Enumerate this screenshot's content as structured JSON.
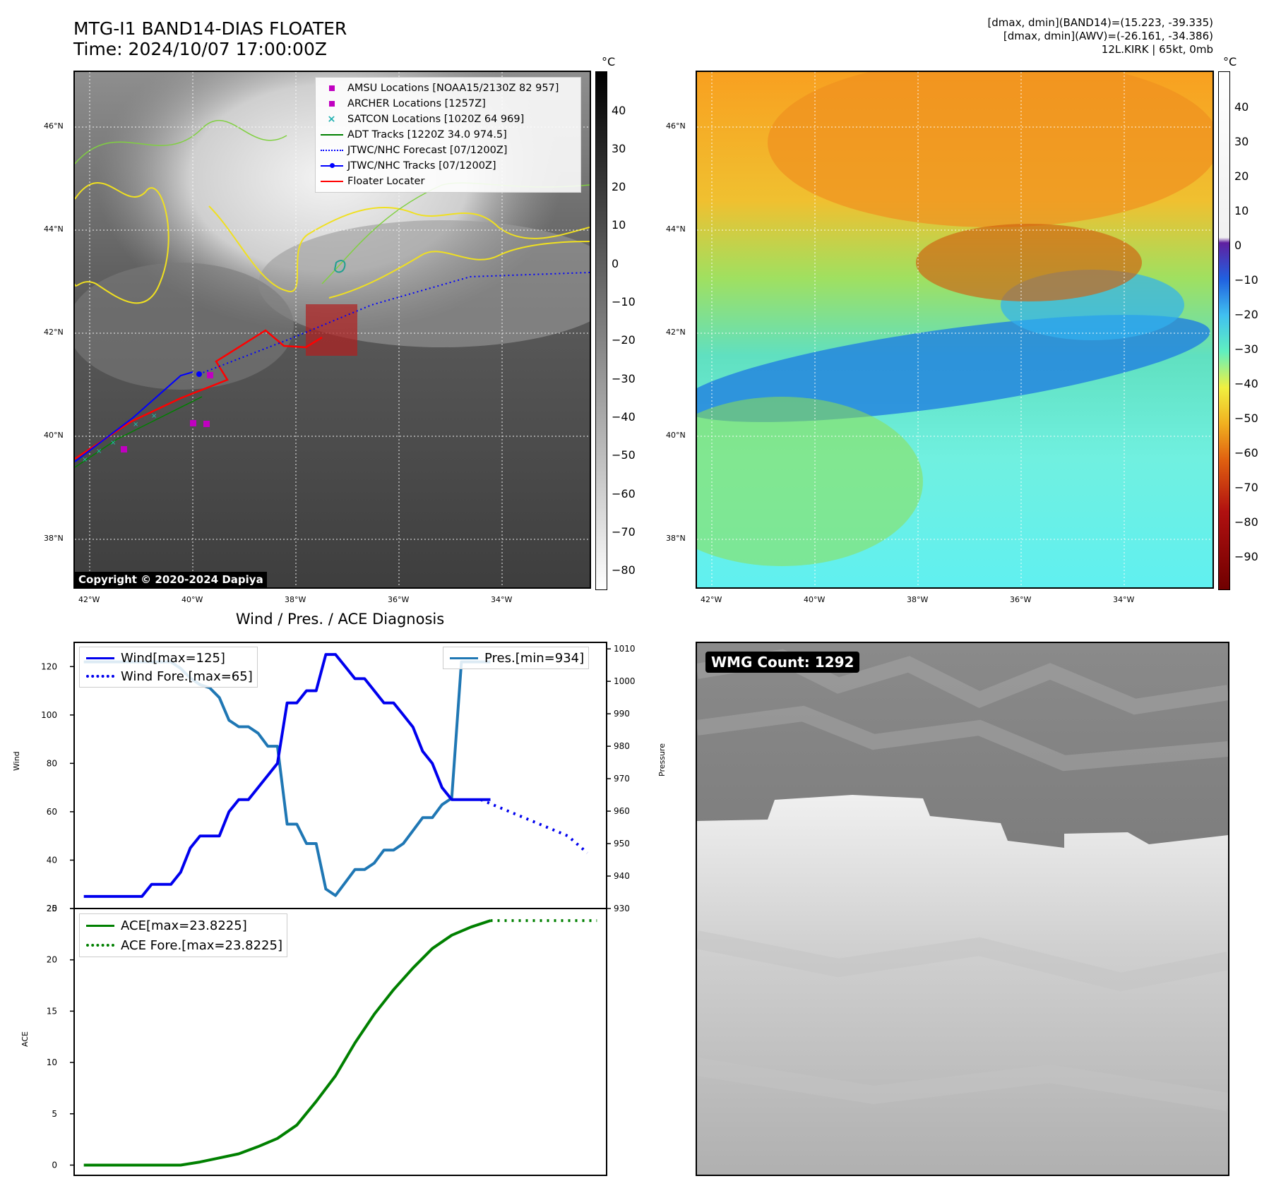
{
  "header": {
    "title_line1": "MTG-I1 BAND14-DIAS FLOATER",
    "title_line2": "Time: 2024/10/07 17:00:00Z",
    "meta_line1": "[dmax, dmin](BAND14)=(15.223, -39.335)",
    "meta_line2": "[dmax, dmin](AWV)=(-26.161, -34.386)",
    "meta_line3": "12L.KIRK | 65kt, 0mb"
  },
  "map": {
    "lat_labels": [
      "46°N",
      "44°N",
      "42°N",
      "40°N",
      "38°N"
    ],
    "lon_labels": [
      "42°W",
      "40°W",
      "38°W",
      "36°W",
      "34°W"
    ],
    "copyright": "Copyright © 2020-2024 Dapiya",
    "unit": "°C",
    "colorbar_left": [
      "40",
      "30",
      "20",
      "10",
      "0",
      "−10",
      "−20",
      "−30",
      "−40",
      "−50",
      "−60",
      "−70",
      "−80"
    ],
    "colorbar_right": [
      "40",
      "30",
      "20",
      "10",
      "0",
      "−10",
      "−20",
      "−30",
      "−40",
      "−50",
      "−60",
      "−70",
      "−80",
      "−90"
    ],
    "legend": [
      {
        "label": "AMSU Locations [NOAA15/2130Z 82 957]",
        "marker": "square",
        "color": "#c000c0"
      },
      {
        "label": "ARCHER Locations [1257Z]",
        "marker": "square",
        "color": "#c000c0"
      },
      {
        "label": "SATCON Locations [1020Z 64 969]",
        "marker": "x",
        "color": "#20b0b0"
      },
      {
        "label": "ADT Tracks [1220Z 34.0 974.5]",
        "marker": "line",
        "color": "#008000"
      },
      {
        "label": "JTWC/NHC Forecast [07/1200Z]",
        "marker": "dotted",
        "color": "#0000ff"
      },
      {
        "label": "JTWC/NHC Tracks [07/1200Z]",
        "marker": "line-dot",
        "color": "#0000ff"
      },
      {
        "label": "Floater Locater",
        "marker": "line",
        "color": "#ff0000"
      }
    ]
  },
  "diag": {
    "title": "Wind / Pres. / ACE Diagnosis",
    "wind_ylabel": "Wind",
    "pres_ylabel": "Pressure",
    "ace_ylabel": "ACE",
    "legend_wind": "Wind[max=125]",
    "legend_wind_fore": "Wind Fore.[max=65]",
    "legend_pres": "Pres.[min=934]",
    "legend_ace": "ACE[max=23.8225]",
    "legend_ace_fore": "ACE Fore.[max=23.8225]",
    "wmg": "WMG Count: 1292"
  },
  "chart_data": [
    {
      "type": "line",
      "title": "Wind / Pres. / ACE Diagnosis",
      "ylabel": "Wind",
      "ylim": [
        20,
        130
      ],
      "yticks": [
        20,
        40,
        60,
        80,
        100,
        120
      ],
      "xlim": [
        -1,
        54
      ],
      "series": [
        {
          "name": "Wind[max=125]",
          "color": "#0000ee",
          "style": "solid",
          "x": [
            0,
            1,
            2,
            3,
            4,
            5,
            6,
            7,
            8,
            9,
            10,
            11,
            12,
            13,
            14,
            15,
            16,
            17,
            18,
            19,
            20,
            21,
            22,
            23,
            24,
            25,
            26,
            27,
            28,
            29,
            30,
            31,
            32,
            33,
            34,
            35,
            36,
            37,
            38,
            39,
            40,
            41,
            42
          ],
          "values": [
            25,
            25,
            25,
            25,
            25,
            25,
            25,
            30,
            30,
            30,
            35,
            45,
            50,
            50,
            50,
            60,
            65,
            65,
            70,
            75,
            80,
            105,
            105,
            110,
            110,
            125,
            125,
            120,
            115,
            115,
            110,
            105,
            105,
            100,
            95,
            85,
            80,
            70,
            65,
            65,
            65,
            65,
            65
          ]
        },
        {
          "name": "Wind Fore.[max=65]",
          "color": "#0000ee",
          "style": "dotted",
          "x": [
            41,
            44,
            47,
            50,
            52
          ],
          "values": [
            65,
            60,
            55,
            50,
            43
          ]
        }
      ]
    },
    {
      "type": "line",
      "ylabel": "Pressure",
      "ylim": [
        930,
        1012
      ],
      "yticks": [
        930,
        940,
        950,
        960,
        970,
        980,
        990,
        1000,
        1010
      ],
      "series": [
        {
          "name": "Pres.[min=934]",
          "color": "#1f77b4",
          "style": "solid",
          "x": [
            0,
            1,
            2,
            3,
            4,
            5,
            6,
            7,
            8,
            9,
            10,
            11,
            12,
            13,
            14,
            15,
            16,
            17,
            18,
            19,
            20,
            21,
            22,
            23,
            24,
            25,
            26,
            27,
            28,
            29,
            30,
            31,
            32,
            33,
            34,
            35,
            36,
            37,
            38,
            39,
            40,
            41,
            42
          ],
          "values": [
            1006,
            1006,
            1006,
            1006,
            1006,
            1006,
            1006,
            1006,
            1006,
            1006,
            1004,
            1001,
            999,
            998,
            995,
            988,
            986,
            986,
            984,
            980,
            980,
            956,
            956,
            950,
            950,
            936,
            934,
            938,
            942,
            942,
            944,
            948,
            948,
            950,
            954,
            958,
            958,
            962,
            964,
            1006,
            1006,
            1006,
            1006
          ]
        }
      ]
    },
    {
      "type": "line",
      "ylabel": "ACE",
      "ylim": [
        -1,
        25
      ],
      "yticks": [
        0,
        5,
        10,
        15,
        20,
        25
      ],
      "series": [
        {
          "name": "ACE[max=23.8225]",
          "color": "#008000",
          "style": "solid",
          "x": [
            0,
            2,
            4,
            6,
            8,
            10,
            12,
            14,
            16,
            18,
            20,
            22,
            24,
            26,
            28,
            30,
            32,
            34,
            36,
            38,
            40,
            42
          ],
          "values": [
            0,
            0,
            0,
            0,
            0,
            0,
            0.3,
            0.7,
            1.1,
            1.8,
            2.6,
            3.9,
            6.2,
            8.7,
            11.9,
            14.7,
            17.1,
            19.2,
            21.1,
            22.4,
            23.2,
            23.8225
          ]
        },
        {
          "name": "ACE Fore.[max=23.8225]",
          "color": "#008000",
          "style": "dotted",
          "x": [
            42,
            53
          ],
          "values": [
            23.8225,
            23.8225
          ]
        }
      ]
    }
  ]
}
